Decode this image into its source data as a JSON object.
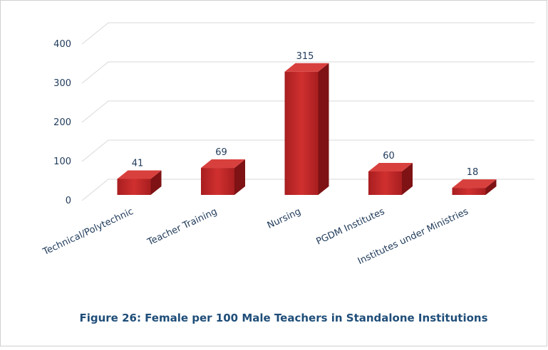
{
  "chart_data": {
    "type": "bar3d",
    "title": "Figure 26: Female  per 100 Male Teachers in Standalone Institutions",
    "categories": [
      "Technical/Polytechnic",
      "Teacher Training",
      "Nursing",
      "PGDM Institutes",
      "Institutes under Ministries"
    ],
    "values": [
      41,
      69,
      315,
      60,
      18
    ],
    "color": "#c0282a",
    "ylim": [
      0,
      400
    ],
    "yticks": [
      0,
      100,
      200,
      300,
      400
    ],
    "grid": true
  }
}
